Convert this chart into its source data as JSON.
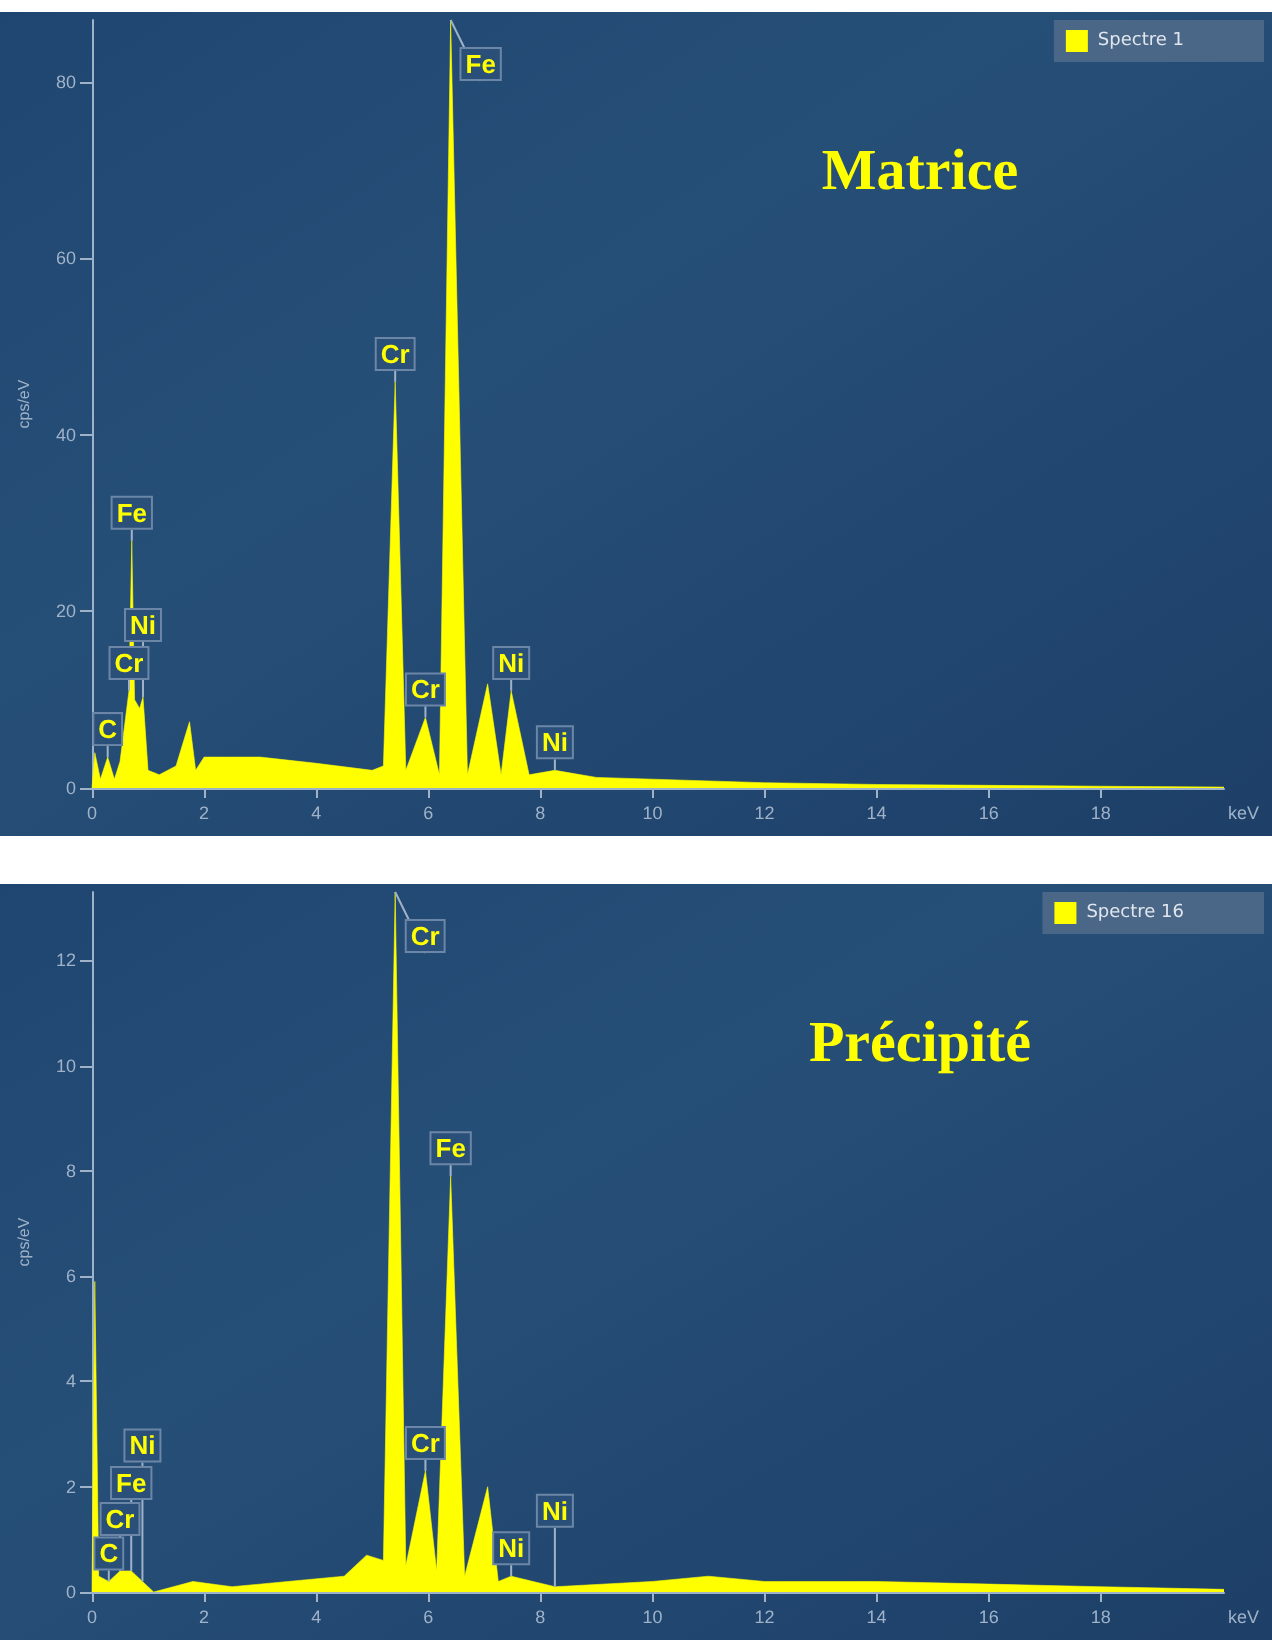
{
  "chart_data": [
    {
      "type": "area",
      "title": "Matrice",
      "xlabel": "keV",
      "ylabel": "cps/eV",
      "legend": "top right",
      "x": [
        0,
        0.05,
        0.15,
        0.28,
        0.4,
        0.5,
        0.6,
        0.66,
        0.71,
        0.76,
        0.85,
        0.91,
        1.0,
        1.2,
        1.5,
        1.74,
        1.85,
        2,
        3,
        4,
        5,
        5.2,
        5.41,
        5.6,
        5.95,
        6.2,
        6.4,
        6.7,
        7.06,
        7.3,
        7.48,
        7.8,
        8.26,
        9,
        10,
        12,
        14,
        16,
        18,
        20.2
      ],
      "series": [
        {
          "name": "Spectre 1",
          "color": "#ffff00",
          "values": [
            0,
            4,
            1,
            3.5,
            1,
            3,
            8,
            11,
            28,
            10,
            9,
            10.3,
            2,
            1.5,
            2.5,
            7.5,
            2,
            3.5,
            3.5,
            2.8,
            2,
            2.5,
            46,
            2,
            8,
            1.5,
            87,
            1.5,
            11.8,
            1.5,
            11,
            1.5,
            2,
            1.2,
            1,
            0.6,
            0.4,
            0.3,
            0.2,
            0.1
          ]
        }
      ],
      "xlim": [
        0,
        20.2
      ],
      "xticks": [
        0,
        2,
        4,
        6,
        8,
        10,
        12,
        14,
        16,
        18
      ],
      "ylim": [
        0,
        87
      ],
      "yticks": [
        0,
        20,
        40,
        60,
        80
      ],
      "annotations": [
        {
          "text": "C",
          "x": 0.28,
          "y": 3.5
        },
        {
          "text": "Cr",
          "x": 0.66,
          "y": 11
        },
        {
          "text": "Fe",
          "x": 0.71,
          "y": 28
        },
        {
          "text": "Ni",
          "x": 0.91,
          "y": 10.3
        },
        {
          "text": "Cr",
          "x": 5.41,
          "y": 46
        },
        {
          "text": "Cr",
          "x": 5.95,
          "y": 8
        },
        {
          "text": "Fe",
          "x": 6.4,
          "y": 87
        },
        {
          "text": "Ni",
          "x": 7.48,
          "y": 11
        },
        {
          "text": "Ni",
          "x": 8.26,
          "y": 2
        }
      ]
    },
    {
      "type": "area",
      "title": "Précipité",
      "xlabel": "keV",
      "ylabel": "cps/eV",
      "legend": "top right",
      "x": [
        0,
        0.05,
        0.12,
        0.3,
        0.5,
        0.7,
        0.9,
        1.1,
        1.8,
        2.5,
        3.5,
        4.5,
        4.9,
        5.2,
        5.41,
        5.6,
        5.95,
        6.15,
        6.4,
        6.65,
        7.06,
        7.25,
        7.48,
        8.26,
        10,
        11,
        12,
        14,
        16,
        18,
        20.2
      ],
      "series": [
        {
          "name": "Spectre 16",
          "color": "#ffff00",
          "values": [
            0,
            5.9,
            0.3,
            0.2,
            0.4,
            0.4,
            0.2,
            0,
            0.2,
            0.1,
            0.2,
            0.3,
            0.7,
            0.6,
            13.3,
            0.5,
            2.3,
            0.4,
            7.9,
            0.3,
            2,
            0.2,
            0.3,
            0.1,
            0.2,
            0.3,
            0.2,
            0.2,
            0.15,
            0.1,
            0.05
          ]
        }
      ],
      "xlim": [
        0,
        20.2
      ],
      "xticks": [
        0,
        2,
        4,
        6,
        8,
        10,
        12,
        14,
        16,
        18
      ],
      "ylim": [
        0,
        13.3
      ],
      "yticks": [
        0,
        2,
        4,
        6,
        8,
        10,
        12
      ],
      "annotations": [
        {
          "text": "Cr",
          "x": 5.41,
          "y": 13.3
        },
        {
          "text": "Fe",
          "x": 6.4,
          "y": 7.9
        },
        {
          "text": "Cr",
          "x": 5.95,
          "y": 2.3
        },
        {
          "text": "Ni",
          "x": 7.48,
          "y": 0.3
        },
        {
          "text": "Ni",
          "x": 8.26,
          "y": 0.1
        },
        {
          "text": "C",
          "x": 0.3,
          "y": 0.2
        },
        {
          "text": "Cr",
          "x": 0.5,
          "y": 0.4
        },
        {
          "text": "Fe",
          "x": 0.7,
          "y": 0.4
        },
        {
          "text": "Ni",
          "x": 0.9,
          "y": 0.2
        }
      ]
    }
  ]
}
